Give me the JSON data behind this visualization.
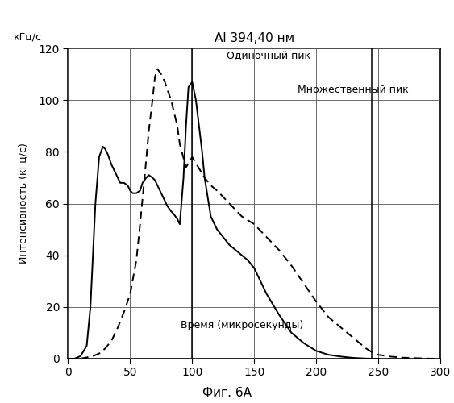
{
  "title": "Al 394,40 нм",
  "ylabel_rotated": "Интенсивность (кГц/с)",
  "ylabel_top": "кГц/с",
  "xlabel_inside": "Время (микросекунды)",
  "fig_label": "Фиг. 6А",
  "xlim": [
    0,
    300
  ],
  "ylim": [
    0,
    120
  ],
  "xticks": [
    0,
    50,
    100,
    150,
    200,
    250,
    300
  ],
  "yticks": [
    0,
    20,
    40,
    60,
    80,
    100,
    120
  ],
  "label_single": "Одиночный пик",
  "label_multi": "Множественный пик",
  "solid_x": [
    0,
    5,
    10,
    15,
    18,
    22,
    25,
    28,
    30,
    32,
    35,
    38,
    40,
    42,
    45,
    48,
    50,
    52,
    55,
    58,
    60,
    63,
    65,
    68,
    70,
    72,
    75,
    78,
    80,
    83,
    85,
    88,
    90,
    93,
    95,
    97,
    100,
    103,
    105,
    108,
    110,
    115,
    120,
    125,
    130,
    135,
    140,
    145,
    150,
    160,
    170,
    180,
    190,
    200,
    210,
    220,
    230,
    240,
    250
  ],
  "solid_y": [
    0,
    0,
    1,
    5,
    20,
    60,
    78,
    82,
    81,
    79,
    75,
    72,
    70,
    68,
    68,
    67,
    65,
    64,
    64,
    65,
    68,
    70,
    71,
    70,
    69,
    67,
    64,
    61,
    59,
    57,
    56,
    54,
    52,
    70,
    90,
    105,
    107,
    100,
    92,
    80,
    70,
    55,
    50,
    47,
    44,
    42,
    40,
    38,
    35,
    25,
    17,
    10,
    6,
    3,
    1.5,
    0.8,
    0.3,
    0.05,
    0
  ],
  "dashed_x": [
    0,
    5,
    10,
    15,
    20,
    25,
    30,
    35,
    40,
    45,
    50,
    55,
    58,
    60,
    62,
    65,
    68,
    70,
    72,
    75,
    78,
    80,
    83,
    85,
    88,
    90,
    95,
    100,
    105,
    110,
    115,
    120,
    130,
    140,
    150,
    160,
    170,
    180,
    190,
    200,
    210,
    220,
    230,
    240,
    245,
    250,
    260,
    270,
    280,
    290,
    300
  ],
  "dashed_y": [
    0,
    0,
    0,
    0.5,
    1,
    2,
    4,
    7,
    12,
    18,
    25,
    38,
    52,
    62,
    72,
    88,
    100,
    109,
    112,
    110,
    107,
    104,
    100,
    96,
    90,
    83,
    74,
    78,
    74,
    70,
    67,
    65,
    60,
    55,
    52,
    47,
    42,
    36,
    29,
    22,
    16,
    12,
    8,
    4,
    2.5,
    1.5,
    0.8,
    0.4,
    0.2,
    0.05,
    0
  ],
  "vline1_x": 100,
  "vline2_x": 245,
  "background_color": "#ffffff",
  "line_color": "#000000"
}
